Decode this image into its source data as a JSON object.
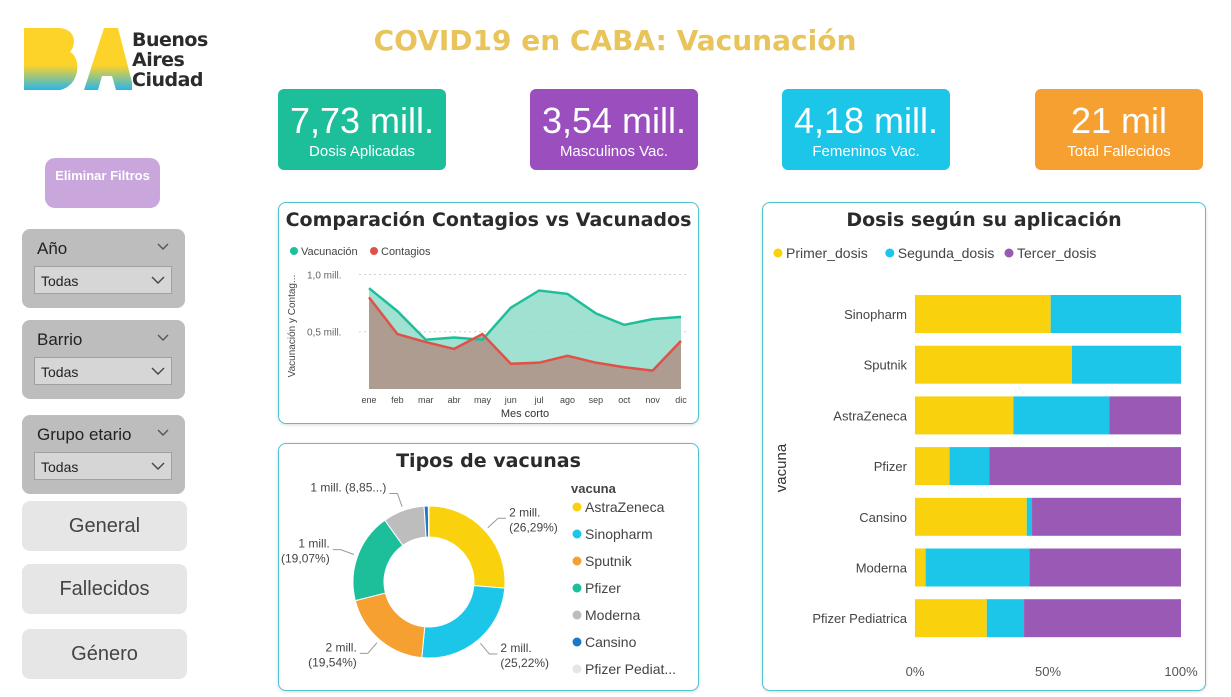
{
  "header": {
    "title": "COVID19 en CABA: Vacunación",
    "logo": {
      "mark": "BA",
      "lines": [
        "Buenos",
        "Aires",
        "Ciudad"
      ]
    }
  },
  "sidebar": {
    "clear_filters": "Eliminar Filtros",
    "slicers": [
      {
        "label": "Año",
        "value": "Todas"
      },
      {
        "label": "Barrio",
        "value": "Todas"
      },
      {
        "label": "Grupo etario",
        "value": "Todas"
      }
    ],
    "nav": [
      "General",
      "Fallecidos",
      "Género"
    ]
  },
  "kpis": [
    {
      "value": "7,73 mill.",
      "label": "Dosis Aplicadas",
      "color": "#1dbf9a"
    },
    {
      "value": "3,54 mill.",
      "label": "Masculinos Vac.",
      "color": "#9b4ebe"
    },
    {
      "value": "4,18 mill.",
      "label": "Femeninos Vac.",
      "color": "#1bc6e8"
    },
    {
      "value": "21 mil",
      "label": "Total Fallecidos",
      "color": "#f5a030"
    }
  ],
  "chart_data": [
    {
      "type": "area",
      "title": "Comparación Contagios vs Vacunados",
      "xlabel": "Mes corto",
      "ylabel": "Vacunación y Contag...",
      "y_ticks": [
        "1,0 mill.",
        "0,5 mill."
      ],
      "y_tick_values": [
        1.0,
        0.5
      ],
      "ylim": [
        0.0,
        1.1
      ],
      "categories": [
        "ene",
        "feb",
        "mar",
        "abr",
        "may",
        "jun",
        "jul",
        "ago",
        "sep",
        "oct",
        "nov",
        "dic"
      ],
      "legend_position": "top-left",
      "series": [
        {
          "name": "Vacunación",
          "color": "#1dbf9a",
          "values": [
            0.88,
            0.68,
            0.43,
            0.45,
            0.43,
            0.71,
            0.86,
            0.83,
            0.66,
            0.56,
            0.61,
            0.63
          ]
        },
        {
          "name": "Contagios",
          "color": "#e05248",
          "values": [
            0.8,
            0.48,
            0.41,
            0.35,
            0.48,
            0.22,
            0.23,
            0.29,
            0.23,
            0.19,
            0.16,
            0.42
          ]
        }
      ]
    },
    {
      "type": "pie",
      "title": "Tipos de vacunas",
      "legend_title": "vacuna",
      "legend_position": "right",
      "slices": [
        {
          "name": "AstraZeneca",
          "value": 26.29,
          "color": "#f9d20d",
          "label": "2 mill.",
          "pct_label": "(26,29%)"
        },
        {
          "name": "Sinopharm",
          "value": 25.22,
          "color": "#1bc6e8",
          "label": "2 mill.",
          "pct_label": "(25,22%)"
        },
        {
          "name": "Sputnik",
          "value": 19.54,
          "color": "#f5a030",
          "label": "2 mill.",
          "pct_label": "(19,54%)"
        },
        {
          "name": "Pfizer",
          "value": 19.07,
          "color": "#1dbf9a",
          "label": "1 mill.",
          "pct_label": "(19,07%)"
        },
        {
          "name": "Moderna",
          "value": 8.85,
          "color": "#bdbdbd",
          "label": "1 mill. (8,85...)",
          "pct_label": ""
        },
        {
          "name": "Cansino",
          "value": 0.9,
          "color": "#1e78c8",
          "label": "",
          "pct_label": ""
        },
        {
          "name": "Pfizer Pediat...",
          "value": 0.13,
          "color": "#ececec",
          "label": "",
          "pct_label": ""
        }
      ]
    },
    {
      "type": "bar",
      "orientation": "horizontal",
      "stacked": "100%",
      "title": "Dosis según su aplicación",
      "ylabel": "vacuna",
      "x_ticks": [
        "0%",
        "50%",
        "100%"
      ],
      "xlim": [
        0,
        100
      ],
      "legend_position": "top-left",
      "categories": [
        "Sinopharm",
        "Sputnik",
        "AstraZeneca",
        "Pfizer",
        "Cansino",
        "Moderna",
        "Pfizer Pediatrica"
      ],
      "series": [
        {
          "name": "Primer_dosis",
          "color": "#f9d20d",
          "values": [
            51,
            59,
            37,
            13,
            42,
            4,
            27
          ]
        },
        {
          "name": "Segunda_dosis",
          "color": "#1bc6e8",
          "values": [
            49,
            41,
            36,
            15,
            2,
            39,
            14
          ]
        },
        {
          "name": "Tercer_dosis",
          "color": "#9b59b6",
          "values": [
            0,
            0,
            27,
            72,
            56,
            57,
            59
          ]
        }
      ]
    }
  ]
}
